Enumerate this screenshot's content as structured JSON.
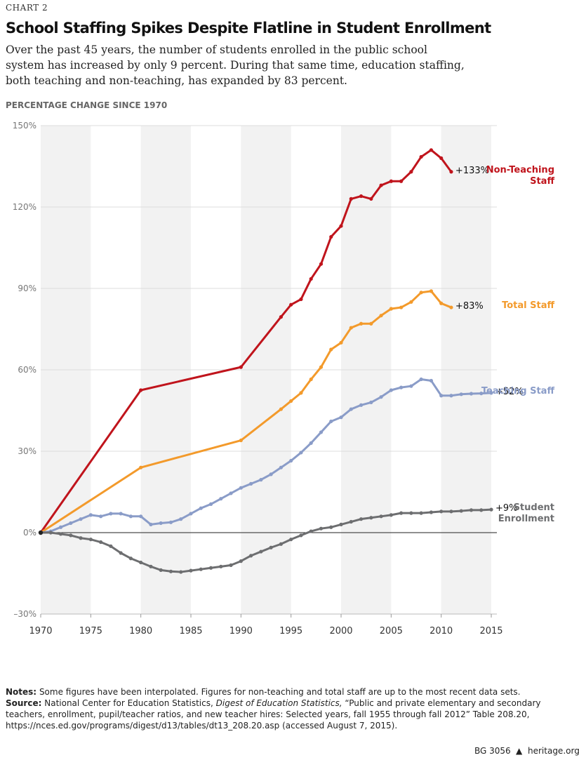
{
  "chart_data": {
    "type": "line",
    "chart_label": "CHART 2",
    "title": "School Staffing Spikes Despite Flatline in Student Enrollment",
    "subtitle": "Over the past 45 years, the number of students enrolled in the public school system has increased by only 9 percent.  During that same time, education staffing, both teaching and non-teaching, has expanded by 83 percent.",
    "y_axis_title": "PERCENTAGE CHANGE SINCE 1970",
    "xlim": [
      1970,
      2015
    ],
    "xticks": [
      1970,
      1975,
      1980,
      1985,
      1990,
      1995,
      2000,
      2005,
      2010,
      2015
    ],
    "ylim": [
      -30,
      150
    ],
    "yticks": [
      {
        "value": -30,
        "label": "–30%"
      },
      {
        "value": 0,
        "label": "0%"
      },
      {
        "value": 30,
        "label": "30%"
      },
      {
        "value": 60,
        "label": "60%"
      },
      {
        "value": 90,
        "label": "90%"
      },
      {
        "value": 120,
        "label": "120%"
      },
      {
        "value": 150,
        "label": "150%"
      }
    ],
    "grid": true,
    "series": [
      {
        "name": "Non-Teaching Staff",
        "color": "#c0141c",
        "end_label": "+133%",
        "x": [
          1970,
          1980,
          1990,
          1994,
          1995,
          1996,
          1997,
          1998,
          1999,
          2000,
          2001,
          2002,
          2003,
          2004,
          2005,
          2006,
          2007,
          2008,
          2009,
          2010,
          2011
        ],
        "values": [
          0,
          52.5,
          61,
          79.5,
          84,
          86,
          93.5,
          99,
          109,
          113,
          123,
          124,
          123,
          128,
          129.5,
          129.5,
          133,
          138.5,
          141,
          138,
          133
        ]
      },
      {
        "name": "Total Staff",
        "color": "#f39a2b",
        "end_label": "+83%",
        "x": [
          1970,
          1980,
          1990,
          1994,
          1995,
          1996,
          1997,
          1998,
          1999,
          2000,
          2001,
          2002,
          2003,
          2004,
          2005,
          2006,
          2007,
          2008,
          2009,
          2010,
          2011
        ],
        "values": [
          0,
          24,
          34,
          45.5,
          48.5,
          51.5,
          56.5,
          61,
          67.5,
          70,
          75.5,
          77,
          77,
          80,
          82.5,
          83,
          85,
          88.5,
          89,
          84.5,
          83
        ]
      },
      {
        "name": "Teaching Staff",
        "color": "#8a9cc8",
        "end_label": "+52%",
        "x": [
          1970,
          1971,
          1972,
          1973,
          1974,
          1975,
          1976,
          1977,
          1978,
          1979,
          1980,
          1981,
          1982,
          1983,
          1984,
          1985,
          1986,
          1987,
          1988,
          1989,
          1990,
          1991,
          1992,
          1993,
          1994,
          1995,
          1996,
          1997,
          1998,
          1999,
          2000,
          2001,
          2002,
          2003,
          2004,
          2005,
          2006,
          2007,
          2008,
          2009,
          2010,
          2011,
          2012,
          2013,
          2014,
          2015
        ],
        "values": [
          0,
          0.5,
          2,
          3.5,
          5,
          6.5,
          6,
          7,
          7,
          6,
          6,
          3,
          3.5,
          3.8,
          5,
          7,
          9,
          10.5,
          12.5,
          14.5,
          16.5,
          18,
          19.5,
          21.5,
          24,
          26.5,
          29.5,
          33,
          37,
          41,
          42.5,
          45.5,
          47,
          48,
          50,
          52.5,
          53.5,
          54,
          56.5,
          56,
          50.5,
          50.5,
          51,
          51.2,
          51.3,
          51.5
        ]
      },
      {
        "name": "Student Enrollment",
        "color": "#6d6e70",
        "end_label": "+9%",
        "x": [
          1970,
          1971,
          1972,
          1973,
          1974,
          1975,
          1976,
          1977,
          1978,
          1979,
          1980,
          1981,
          1982,
          1983,
          1984,
          1985,
          1986,
          1987,
          1988,
          1989,
          1990,
          1991,
          1992,
          1993,
          1994,
          1995,
          1996,
          1997,
          1998,
          1999,
          2000,
          2001,
          2002,
          2003,
          2004,
          2005,
          2006,
          2007,
          2008,
          2009,
          2010,
          2011,
          2012,
          2013,
          2014,
          2015
        ],
        "values": [
          0,
          0,
          -0.5,
          -1,
          -2,
          -2.5,
          -3.5,
          -5,
          -7.5,
          -9.5,
          -11,
          -12.5,
          -13.8,
          -14.3,
          -14.5,
          -14,
          -13.5,
          -13,
          -12.5,
          -12,
          -10.5,
          -8.5,
          -7,
          -5.5,
          -4.2,
          -2.5,
          -1,
          0.5,
          1.5,
          2,
          3,
          4,
          5,
          5.5,
          6,
          6.5,
          7.2,
          7.2,
          7.2,
          7.5,
          7.8,
          7.8,
          8,
          8.3,
          8.3,
          8.5
        ]
      }
    ],
    "notes_label": "Notes:",
    "notes": "Some figures have been interpolated. Figures for non-teaching and total staff are up to the most recent data sets.",
    "source_label": "Source:",
    "source_prefix": "National Center for Education Statistics,",
    "source_italic": "Digest of Education Statistics,",
    "source_rest": "“Public and private elementary and secondary teachers, enrollment, pupil/teacher ratios, and new teacher hires: Selected years, fall 1955 through fall 2012” Table 208.20, https://nces.ed.gov/programs/digest/d13/tables/dt13_208.20.asp (accessed August 7, 2015).",
    "footer_id": "BG 3056",
    "footer_site": "heritage.org"
  }
}
